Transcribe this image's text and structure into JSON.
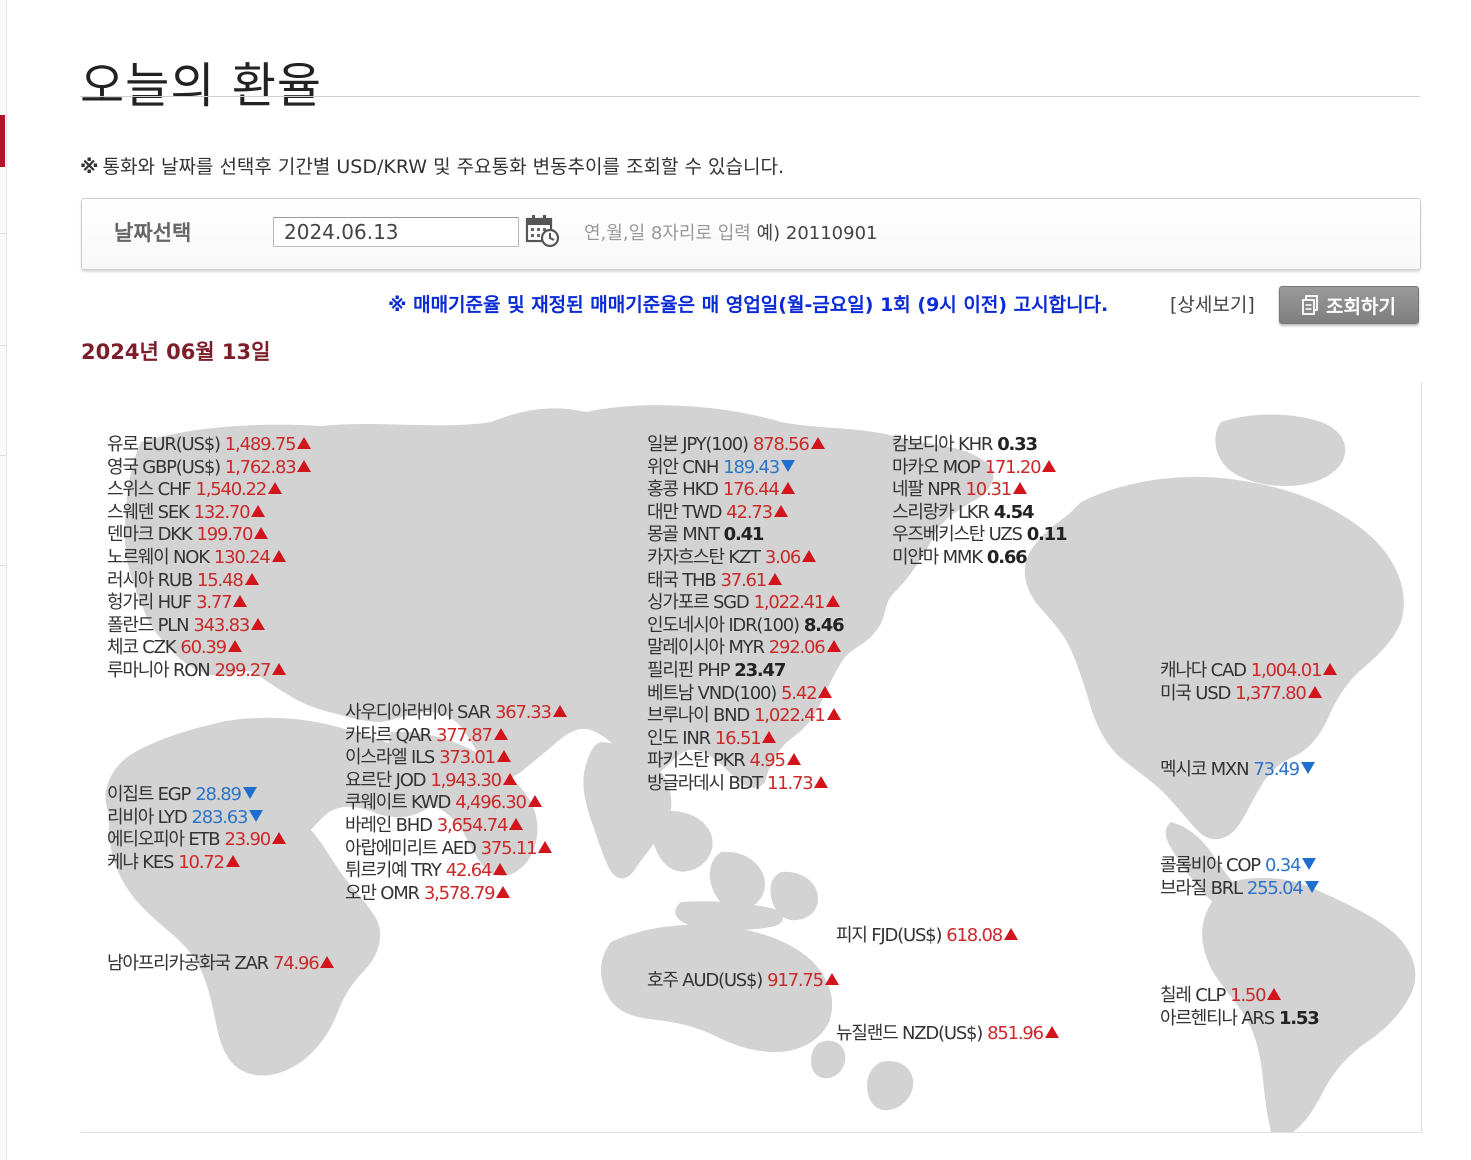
{
  "page": {
    "title": "오늘의 환율",
    "notice_mark": "※",
    "notice": "통화와 날짜를 선택후 기간별 USD/KRW 및 주요통화 변동추이를 조회할 수 있습니다."
  },
  "date_select": {
    "label": "날짜선택",
    "value": "2024.06.13",
    "hint": "연,월,일 8자리로 입력",
    "example": "예) 20110901"
  },
  "rate_notice": "※ 매매기준율 및 재정된 매매기준율은 매 영업일(월-금요일) 1회 (9시 이전) 고시합니다.",
  "detail_link": "[상세보기]",
  "search_button": "조회하기",
  "date_heading": "2024년 06월 13일",
  "colors": {
    "up": "#d2141b",
    "down": "#1f6fd1",
    "up_text": "#cc2a2a",
    "down_text": "#2d74c8",
    "heading": "#7d1d2a",
    "notice_blue": "#0b2bd6"
  },
  "icons": {
    "calendar": "calendar-icon",
    "document": "document-icon",
    "up": "up-triangle-icon",
    "down": "down-triangle-icon"
  },
  "rates": {
    "europe": [
      {
        "name": "유로 EUR(US$)",
        "value": "1,489.75",
        "trend": "up"
      },
      {
        "name": "영국 GBP(US$)",
        "value": "1,762.83",
        "trend": "up"
      },
      {
        "name": "스위스 CHF",
        "value": "1,540.22",
        "trend": "up"
      },
      {
        "name": "스웨덴 SEK",
        "value": "132.70",
        "trend": "up"
      },
      {
        "name": "덴마크 DKK",
        "value": "199.70",
        "trend": "up"
      },
      {
        "name": "노르웨이 NOK",
        "value": "130.24",
        "trend": "up"
      },
      {
        "name": "러시아 RUB",
        "value": "15.48",
        "trend": "up"
      },
      {
        "name": "헝가리 HUF",
        "value": "3.77",
        "trend": "up"
      },
      {
        "name": "폴란드 PLN",
        "value": "343.83",
        "trend": "up"
      },
      {
        "name": "체코 CZK",
        "value": "60.39",
        "trend": "up"
      },
      {
        "name": "루마니아 RON",
        "value": "299.27",
        "trend": "up"
      }
    ],
    "middle_east": [
      {
        "name": "사우디아라비아 SAR",
        "value": "367.33",
        "trend": "up"
      },
      {
        "name": "카타르 QAR",
        "value": "377.87",
        "trend": "up"
      },
      {
        "name": "이스라엘 ILS",
        "value": "373.01",
        "trend": "up"
      },
      {
        "name": "요르단 JOD",
        "value": "1,943.30",
        "trend": "up"
      },
      {
        "name": "쿠웨이트 KWD",
        "value": "4,496.30",
        "trend": "up"
      },
      {
        "name": "바레인 BHD",
        "value": "3,654.74",
        "trend": "up"
      },
      {
        "name": "아랍에미리트 AED",
        "value": "375.11",
        "trend": "up"
      },
      {
        "name": "튀르키예 TRY",
        "value": "42.64",
        "trend": "up"
      },
      {
        "name": "오만 OMR",
        "value": "3,578.79",
        "trend": "up"
      }
    ],
    "africa": [
      {
        "name": "이집트 EGP",
        "value": "28.89",
        "trend": "down"
      },
      {
        "name": "리비아 LYD",
        "value": "283.63",
        "trend": "down"
      },
      {
        "name": "에티오피아 ETB",
        "value": "23.90",
        "trend": "up"
      },
      {
        "name": "케냐 KES",
        "value": "10.72",
        "trend": "up"
      }
    ],
    "south_africa": [
      {
        "name": "남아프리카공화국 ZAR",
        "value": "74.96",
        "trend": "up"
      }
    ],
    "asia": [
      {
        "name": "일본 JPY(100)",
        "value": "878.56",
        "trend": "up"
      },
      {
        "name": "위안 CNH",
        "value": "189.43",
        "trend": "down"
      },
      {
        "name": "홍콩 HKD",
        "value": "176.44",
        "trend": "up"
      },
      {
        "name": "대만 TWD",
        "value": "42.73",
        "trend": "up"
      },
      {
        "name": "몽골 MNT",
        "value": "0.41",
        "trend": "flat"
      },
      {
        "name": "카자흐스탄 KZT",
        "value": "3.06",
        "trend": "up"
      },
      {
        "name": "태국 THB",
        "value": "37.61",
        "trend": "up"
      },
      {
        "name": "싱가포르 SGD",
        "value": "1,022.41",
        "trend": "up"
      },
      {
        "name": "인도네시아 IDR(100)",
        "value": "8.46",
        "trend": "flat"
      },
      {
        "name": "말레이시아 MYR",
        "value": "292.06",
        "trend": "up"
      },
      {
        "name": "필리핀 PHP",
        "value": "23.47",
        "trend": "flat"
      },
      {
        "name": "베트남 VND(100)",
        "value": "5.42",
        "trend": "up"
      },
      {
        "name": "브루나이 BND",
        "value": "1,022.41",
        "trend": "up"
      },
      {
        "name": "인도 INR",
        "value": "16.51",
        "trend": "up"
      },
      {
        "name": "파키스탄 PKR",
        "value": "4.95",
        "trend": "up"
      },
      {
        "name": "방글라데시 BDT",
        "value": "11.73",
        "trend": "up"
      }
    ],
    "asia2": [
      {
        "name": "캄보디아 KHR",
        "value": "0.33",
        "trend": "flat"
      },
      {
        "name": "마카오 MOP",
        "value": "171.20",
        "trend": "up"
      },
      {
        "name": "네팔 NPR",
        "value": "10.31",
        "trend": "up"
      },
      {
        "name": "스리랑카 LKR",
        "value": "4.54",
        "trend": "flat"
      },
      {
        "name": "우즈베키스탄 UZS",
        "value": "0.11",
        "trend": "flat"
      },
      {
        "name": "미얀마 MMK",
        "value": "0.66",
        "trend": "flat"
      }
    ],
    "north_america": [
      {
        "name": "캐나다 CAD",
        "value": "1,004.01",
        "trend": "up"
      },
      {
        "name": "미국 USD",
        "value": "1,377.80",
        "trend": "up"
      }
    ],
    "mexico": [
      {
        "name": "멕시코 MXN",
        "value": "73.49",
        "trend": "down"
      }
    ],
    "south_america": [
      {
        "name": "콜롬비아 COP",
        "value": "0.34",
        "trend": "down"
      },
      {
        "name": "브라질 BRL",
        "value": "255.04",
        "trend": "down"
      }
    ],
    "south_cone": [
      {
        "name": "칠레 CLP",
        "value": "1.50",
        "trend": "up"
      },
      {
        "name": "아르헨티나 ARS",
        "value": "1.53",
        "trend": "flat"
      }
    ],
    "oceania_fiji": [
      {
        "name": "피지 FJD(US$)",
        "value": "618.08",
        "trend": "up"
      }
    ],
    "oceania_au": [
      {
        "name": "호주 AUD(US$)",
        "value": "917.75",
        "trend": "up"
      }
    ],
    "oceania_nz": [
      {
        "name": "뉴질랜드 NZD(US$)",
        "value": "851.96",
        "trend": "up"
      }
    ]
  }
}
